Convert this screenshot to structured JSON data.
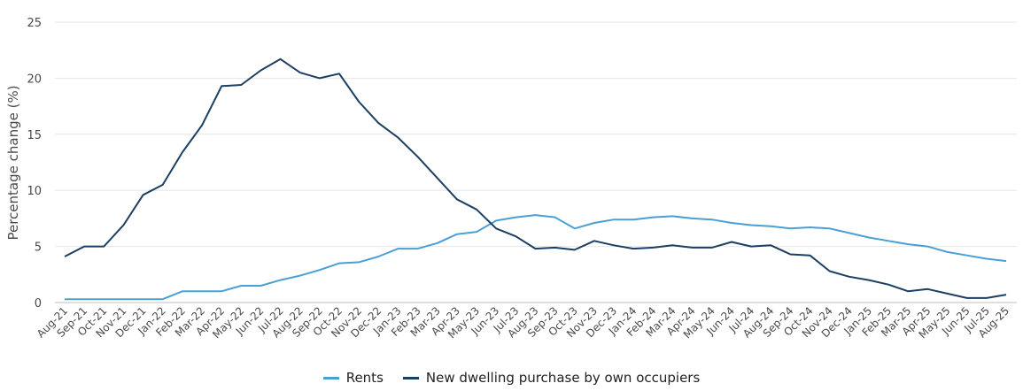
{
  "chart_data": {
    "type": "line",
    "title": "",
    "xlabel": "",
    "ylabel": "Percentage change (%)",
    "ylim": [
      0,
      25
    ],
    "yticks": [
      "0",
      "5",
      "10",
      "15",
      "20",
      "25"
    ],
    "grid": true,
    "legend_position": "bottom",
    "categories": [
      "Aug-21",
      "Sep-21",
      "Oct-21",
      "Nov-21",
      "Dec-21",
      "Jan-22",
      "Feb-22",
      "Mar-22",
      "Apr-22",
      "May-22",
      "Jun-22",
      "Jul-22",
      "Aug-22",
      "Sep-22",
      "Oct-22",
      "Nov-22",
      "Dec-22",
      "Jan-23",
      "Feb-23",
      "Mar-23",
      "Apr-23",
      "May-23",
      "Jun-23",
      "Jul-23",
      "Aug-23",
      "Sep-23",
      "Oct-23",
      "Nov-23",
      "Dec-23",
      "Jan-24",
      "Feb-24",
      "Mar-24",
      "Apr-24",
      "May-24",
      "Jun-24",
      "Jul-24",
      "Aug-24",
      "Sep-24",
      "Oct-24",
      "Nov-24",
      "Dec-24",
      "Jan-25",
      "Feb-25",
      "Mar-25",
      "Apr-25",
      "May-25",
      "Jun-25",
      "Jul-25",
      "Aug-25"
    ],
    "series": [
      {
        "name": "Rents",
        "color": "#4a9fd5",
        "values": [
          0.3,
          0.3,
          0.3,
          0.3,
          0.3,
          0.3,
          1.0,
          1.0,
          1.0,
          1.5,
          1.5,
          2.0,
          2.4,
          2.9,
          3.5,
          3.6,
          4.1,
          4.8,
          4.8,
          5.3,
          6.1,
          6.3,
          7.3,
          7.6,
          7.8,
          7.6,
          6.6,
          7.1,
          7.4,
          7.4,
          7.6,
          7.7,
          7.5,
          7.4,
          7.1,
          6.9,
          6.8,
          6.6,
          6.7,
          6.6,
          6.2,
          5.8,
          5.5,
          5.2,
          5.0,
          4.5,
          4.2,
          3.9,
          3.7
        ]
      },
      {
        "name": "New dwelling purchase by own occupiers",
        "color": "#1b3f63",
        "values": [
          4.1,
          5.0,
          5.0,
          6.9,
          9.6,
          10.5,
          13.4,
          15.8,
          19.3,
          19.4,
          20.7,
          21.7,
          20.5,
          20.0,
          20.4,
          17.9,
          16.0,
          14.7,
          13.0,
          11.1,
          9.2,
          8.3,
          6.6,
          5.9,
          4.8,
          4.9,
          4.7,
          5.5,
          5.1,
          4.8,
          4.9,
          5.1,
          4.9,
          4.9,
          5.4,
          5.0,
          5.1,
          4.3,
          4.2,
          2.8,
          2.3,
          2.0,
          1.6,
          1.0,
          1.2,
          0.8,
          0.4,
          0.4,
          0.7
        ]
      }
    ]
  }
}
